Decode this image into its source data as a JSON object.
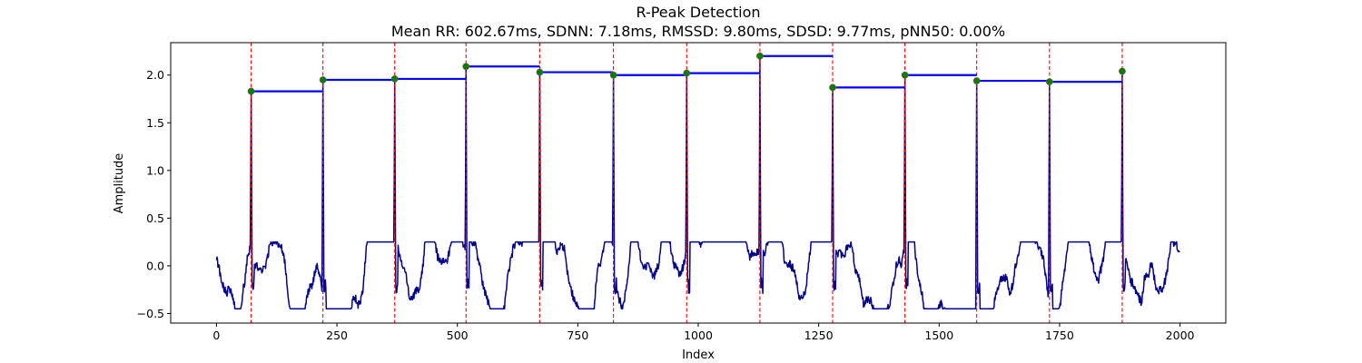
{
  "chart_data": {
    "type": "line",
    "title": "R-Peak Detection",
    "subtitle": "Mean RR: 602.67ms, SDNN: 7.18ms, RMSSD: 9.80ms, SDSD: 9.77ms, pNN50: 0.00%",
    "xlabel": "Index",
    "ylabel": "Amplitude",
    "xlim": [
      -95,
      2095
    ],
    "ylim": [
      -0.6,
      2.34
    ],
    "x_ticks": [
      0,
      250,
      500,
      750,
      1000,
      1250,
      1500,
      1750,
      2000
    ],
    "x_tick_labels": [
      "0",
      "250",
      "500",
      "750",
      "1000",
      "1250",
      "1500",
      "1750",
      "2000"
    ],
    "y_ticks": [
      -0.5,
      0.0,
      0.5,
      1.0,
      1.5,
      2.0
    ],
    "y_tick_labels": [
      "−0.5",
      "0.0",
      "0.5",
      "1.0",
      "1.5",
      "2.0"
    ],
    "grid": false,
    "signal_range": [
      0,
      1999
    ],
    "peaks": [
      {
        "x": 72,
        "y": 1.83
      },
      {
        "x": 221,
        "y": 1.95
      },
      {
        "x": 370,
        "y": 1.96
      },
      {
        "x": 518,
        "y": 2.09
      },
      {
        "x": 671,
        "y": 2.03
      },
      {
        "x": 824,
        "y": 2.0
      },
      {
        "x": 976,
        "y": 2.02
      },
      {
        "x": 1128,
        "y": 2.2
      },
      {
        "x": 1279,
        "y": 1.87
      },
      {
        "x": 1429,
        "y": 2.0
      },
      {
        "x": 1578,
        "y": 1.94
      },
      {
        "x": 1729,
        "y": 1.93
      },
      {
        "x": 1880,
        "y": 2.04
      }
    ],
    "colors": {
      "signal": "#00008b",
      "peak_marker": "#008000",
      "peak_marker_edge": "#a05050",
      "peak_line": "#ff0000",
      "rr_segment": "#0000ff"
    }
  }
}
